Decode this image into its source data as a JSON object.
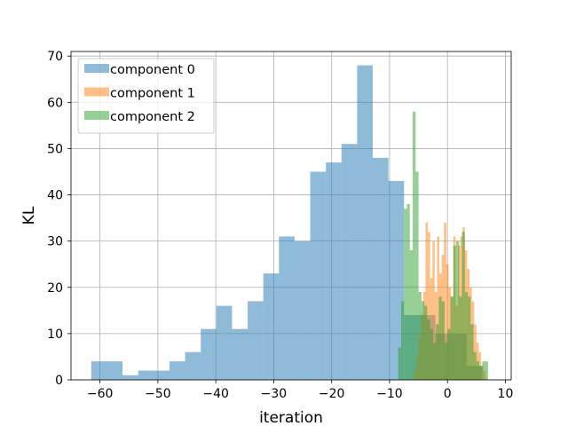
{
  "chart_data": {
    "type": "bar",
    "subtype": "overlapping-histogram",
    "xlabel": "iteration",
    "ylabel": "KL",
    "xlim": [
      -65,
      11
    ],
    "ylim": [
      0,
      71
    ],
    "xticks": [
      -60,
      -50,
      -40,
      -30,
      -20,
      -10,
      0,
      10
    ],
    "yticks": [
      0,
      10,
      20,
      30,
      40,
      50,
      60,
      70
    ],
    "grid": true,
    "legend_position": "top-left",
    "series": [
      {
        "name": "component 0",
        "color": "#1f77b4",
        "bin_edges": [
          -61.5,
          -58.8,
          -56.1,
          -53.4,
          -50.7,
          -48.0,
          -45.3,
          -42.6,
          -39.9,
          -37.2,
          -34.5,
          -31.8,
          -29.1,
          -26.4,
          -23.7,
          -21.0,
          -18.3,
          -15.6,
          -12.9,
          -10.2,
          -7.5,
          -4.8,
          -2.1,
          0.6,
          3.3,
          6.0
        ],
        "counts": [
          4,
          4,
          1,
          2,
          2,
          4,
          6,
          11,
          16,
          11,
          17,
          23,
          31,
          30,
          45,
          47,
          51,
          68,
          48,
          43,
          14,
          14,
          10,
          10,
          3
        ]
      },
      {
        "name": "component 1",
        "color": "#ff7f0e",
        "bin_edges": [
          -5.8,
          -5.4,
          -5.0,
          -4.6,
          -4.2,
          -3.8,
          -3.4,
          -3.0,
          -2.6,
          -2.2,
          -1.8,
          -1.4,
          -1.0,
          -0.6,
          -0.2,
          0.2,
          0.6,
          1.0,
          1.4,
          1.8,
          2.2,
          2.6,
          3.0,
          3.4,
          3.8,
          4.2,
          4.6,
          5.0,
          5.4,
          5.8,
          6.2,
          6.6
        ],
        "counts": [
          2,
          5,
          9,
          14,
          19,
          34,
          32,
          22,
          30,
          19,
          31,
          23,
          27,
          34,
          25,
          20,
          18,
          31,
          16,
          29,
          31,
          33,
          28,
          24,
          20,
          17,
          12,
          8,
          6,
          3,
          2
        ]
      },
      {
        "name": "component 2",
        "color": "#2ca02c",
        "bin_edges": [
          -8.5,
          -8.0,
          -7.5,
          -7.0,
          -6.5,
          -6.0,
          -5.5,
          -5.0,
          -4.5,
          -4.0,
          -3.5,
          -3.0,
          -2.5,
          -2.0,
          -1.5,
          -1.0,
          -0.5,
          0.0,
          0.5,
          1.0,
          1.5,
          2.0,
          2.5,
          3.0,
          3.5,
          4.0,
          4.5,
          5.0,
          5.5,
          6.0,
          6.5,
          7.0
        ],
        "counts": [
          7,
          17,
          37,
          38,
          28,
          58,
          45,
          19,
          17,
          16,
          13,
          11,
          8,
          12,
          18,
          17,
          8,
          11,
          18,
          29,
          30,
          18,
          32,
          19,
          18,
          12,
          6,
          4,
          3,
          4,
          4
        ]
      }
    ]
  }
}
